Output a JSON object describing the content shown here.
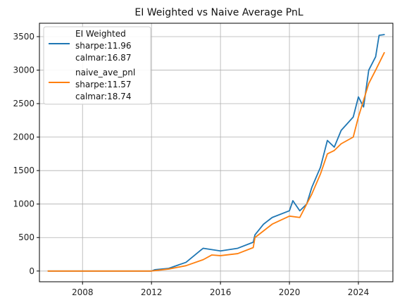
{
  "chart_data": {
    "type": "line",
    "title": "EI Weighted vs Naive Average PnL",
    "xlabel": "",
    "ylabel": "",
    "x_ticks": [
      "2008",
      "2012",
      "2016",
      "2020",
      "2024"
    ],
    "y_ticks": [
      "0",
      "500",
      "1000",
      "1500",
      "2000",
      "2500",
      "3000",
      "3500"
    ],
    "xlim": [
      2005.5,
      2026.0
    ],
    "ylim": [
      -160,
      3700
    ],
    "grid": true,
    "legend_position": "top-left",
    "series": [
      {
        "name": "EI Weighted",
        "legend_lines": [
          "EI Weighted",
          "sharpe:11.96",
          "calmar:16.87"
        ],
        "color": "#1f77b4",
        "points": [
          [
            2006.0,
            0
          ],
          [
            2012.0,
            0
          ],
          [
            2012.2,
            20
          ],
          [
            2013.0,
            40
          ],
          [
            2014.0,
            130
          ],
          [
            2014.8,
            300
          ],
          [
            2015.0,
            340
          ],
          [
            2015.5,
            320
          ],
          [
            2016.0,
            300
          ],
          [
            2017.0,
            340
          ],
          [
            2017.9,
            430
          ],
          [
            2018.0,
            540
          ],
          [
            2018.5,
            700
          ],
          [
            2019.0,
            800
          ],
          [
            2020.0,
            900
          ],
          [
            2020.2,
            1050
          ],
          [
            2020.6,
            900
          ],
          [
            2021.0,
            1000
          ],
          [
            2021.3,
            1250
          ],
          [
            2021.8,
            1550
          ],
          [
            2022.2,
            1950
          ],
          [
            2022.6,
            1850
          ],
          [
            2023.0,
            2100
          ],
          [
            2023.7,
            2300
          ],
          [
            2024.0,
            2600
          ],
          [
            2024.3,
            2450
          ],
          [
            2024.6,
            3000
          ],
          [
            2025.0,
            3200
          ],
          [
            2025.2,
            3520
          ],
          [
            2025.5,
            3530
          ]
        ]
      },
      {
        "name": "naive_ave_pnl",
        "legend_lines": [
          "naive_ave_pnl",
          "sharpe:11.57",
          "calmar:18.74"
        ],
        "color": "#ff7f0e",
        "points": [
          [
            2006.0,
            0
          ],
          [
            2012.0,
            0
          ],
          [
            2013.0,
            30
          ],
          [
            2014.0,
            80
          ],
          [
            2015.0,
            170
          ],
          [
            2015.5,
            240
          ],
          [
            2016.0,
            230
          ],
          [
            2017.0,
            260
          ],
          [
            2017.9,
            350
          ],
          [
            2018.0,
            500
          ],
          [
            2018.5,
            600
          ],
          [
            2019.0,
            700
          ],
          [
            2020.0,
            820
          ],
          [
            2020.6,
            800
          ],
          [
            2021.0,
            1000
          ],
          [
            2021.3,
            1150
          ],
          [
            2021.8,
            1450
          ],
          [
            2022.2,
            1750
          ],
          [
            2022.6,
            1800
          ],
          [
            2023.0,
            1900
          ],
          [
            2023.7,
            2000
          ],
          [
            2024.0,
            2300
          ],
          [
            2024.6,
            2800
          ],
          [
            2025.0,
            3000
          ],
          [
            2025.5,
            3260
          ]
        ]
      }
    ]
  }
}
